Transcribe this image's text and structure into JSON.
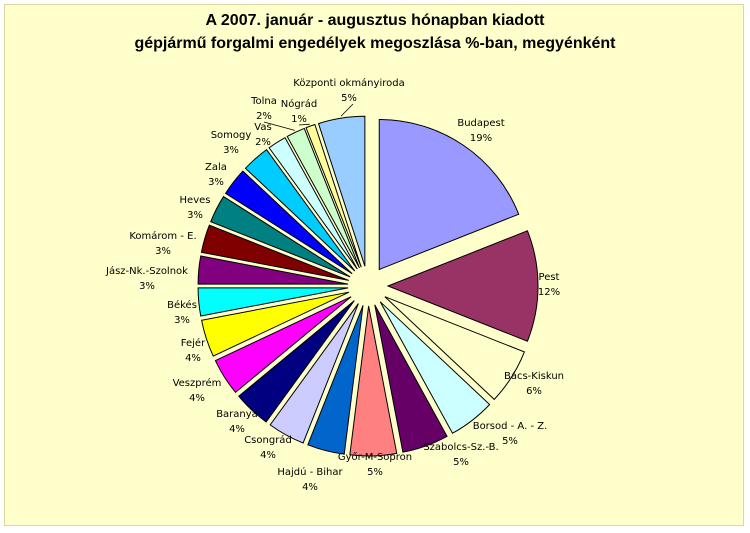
{
  "chart_data": {
    "type": "pie",
    "title": "A 2007. január - augusztus hónapban kiadott",
    "subtitle": "gépjármű forgalmi engedélyek megoszlása %-ban, megyénként",
    "slices": [
      {
        "name": "Budapest",
        "value": 19,
        "value_label": "19%",
        "color": "#9999ff"
      },
      {
        "name": "Pest",
        "value": 12,
        "value_label": "12%",
        "color": "#993366"
      },
      {
        "name": "Bács-Kiskun",
        "value": 6,
        "value_label": "6%",
        "color": "#ffffcc"
      },
      {
        "name": "Borsod - A. - Z.",
        "value": 5,
        "value_label": "5%",
        "color": "#ccffff"
      },
      {
        "name": "Szabolcs-Sz.-B.",
        "value": 5,
        "value_label": "5%",
        "color": "#660066"
      },
      {
        "name": "Győr-M-Sopron",
        "value": 5,
        "value_label": "5%",
        "color": "#ff8080"
      },
      {
        "name": "Hajdú - Bihar",
        "value": 4,
        "value_label": "4%",
        "color": "#0066cc"
      },
      {
        "name": "Csongrád",
        "value": 4,
        "value_label": "4%",
        "color": "#ccccff"
      },
      {
        "name": "Baranya",
        "value": 4,
        "value_label": "4%",
        "color": "#000080"
      },
      {
        "name": "Veszprém",
        "value": 4,
        "value_label": "4%",
        "color": "#ff00ff"
      },
      {
        "name": "Fejér",
        "value": 4,
        "value_label": "4%",
        "color": "#ffff00"
      },
      {
        "name": "Békés",
        "value": 3,
        "value_label": "3%",
        "color": "#00ffff"
      },
      {
        "name": "Jász-Nk.-Szolnok",
        "value": 3,
        "value_label": "3%",
        "color": "#800080"
      },
      {
        "name": "Komárom - E.",
        "value": 3,
        "value_label": "3%",
        "color": "#800000"
      },
      {
        "name": "Heves",
        "value": 3,
        "value_label": "3%",
        "color": "#008080"
      },
      {
        "name": "Zala",
        "value": 3,
        "value_label": "3%",
        "color": "#0000ff"
      },
      {
        "name": "Somogy",
        "value": 3,
        "value_label": "3%",
        "color": "#00ccff"
      },
      {
        "name": "Vas",
        "value": 2,
        "value_label": "2%",
        "color": "#ccffff"
      },
      {
        "name": "Tolna",
        "value": 2,
        "value_label": "2%",
        "color": "#ccffcc"
      },
      {
        "name": "Nógrád",
        "value": 1,
        "value_label": "1%",
        "color": "#ffff99"
      },
      {
        "name": "Központi okmányiroda",
        "value": 5,
        "value_label": "5%",
        "color": "#99ccff"
      }
    ],
    "exploded": true,
    "legend": "none",
    "background": "#ffffcc"
  }
}
